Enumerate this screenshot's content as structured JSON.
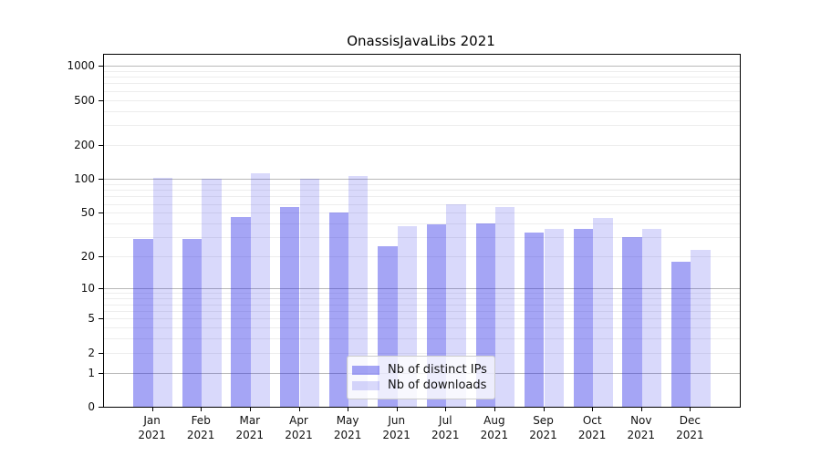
{
  "figure": {
    "background": "#ffffff"
  },
  "chart_data": {
    "type": "bar",
    "title": "OnassisJavaLibs 2021",
    "categories": [
      "Jan",
      "Feb",
      "Mar",
      "Apr",
      "May",
      "Jun",
      "Jul",
      "Aug",
      "Sep",
      "Oct",
      "Nov",
      "Dec"
    ],
    "category_year": "2021",
    "series": [
      {
        "name": "Nb of distinct IPs",
        "values": [
          29,
          29,
          46,
          56,
          50,
          25,
          39,
          40,
          33,
          36,
          30,
          18
        ],
        "color_hex": "#a4a4f2",
        "color_rgba": "rgba(30,30,230,0.40)"
      },
      {
        "name": "Nb of downloads",
        "values": [
          103,
          100,
          112,
          100,
          107,
          38,
          59,
          56,
          36,
          45,
          36,
          23
        ],
        "color_hex": "#d9d9fa",
        "color_rgba": "rgba(30,30,230,0.17)"
      }
    ],
    "xlabel": "",
    "ylabel": "",
    "yscale": "log1p",
    "ylim": [
      0,
      1250
    ],
    "yticks": [
      0,
      1,
      2,
      5,
      10,
      20,
      50,
      100,
      200,
      500,
      1000
    ],
    "grid": "on",
    "grid_major_color": "#b9b9b9",
    "grid_minor_color": "#ededed",
    "legend_position": "lower center"
  }
}
